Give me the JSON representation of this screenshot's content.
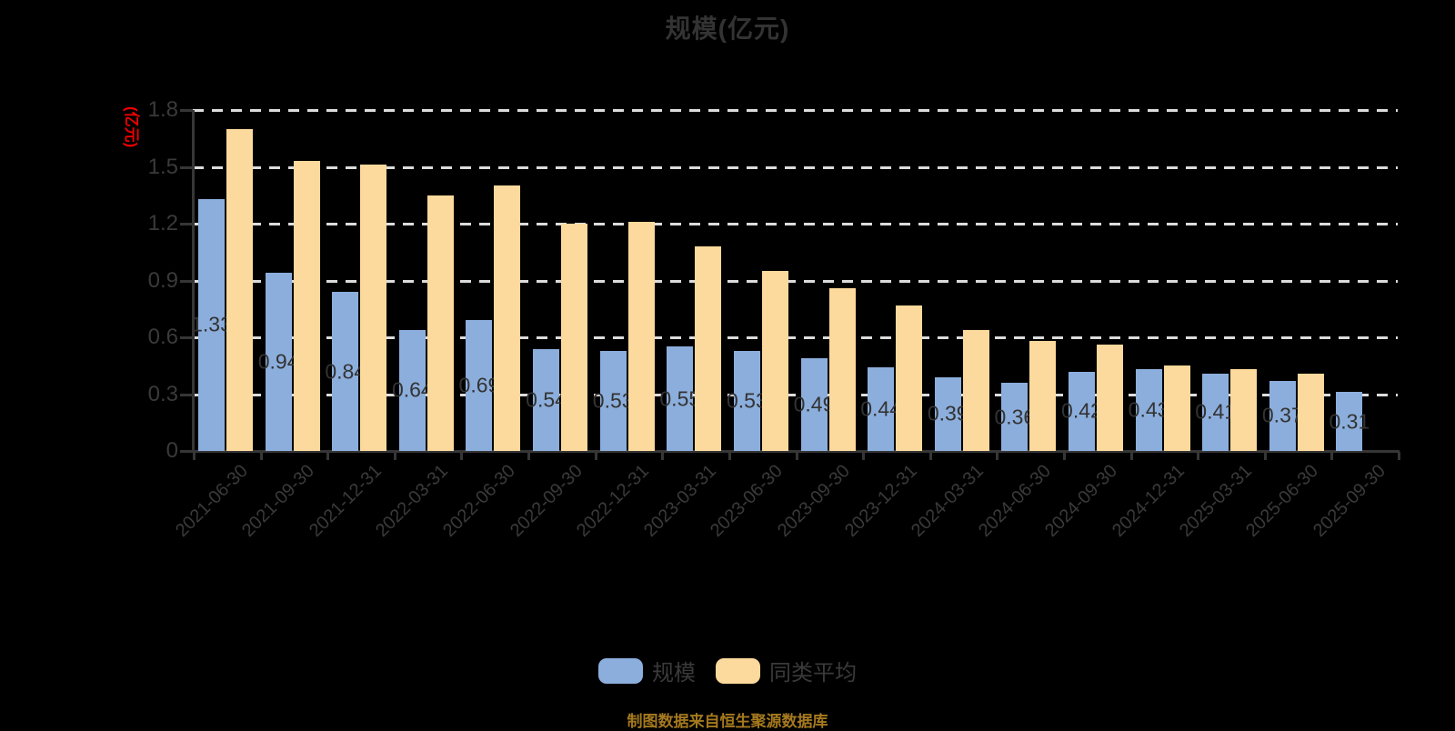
{
  "title": "规模(亿元)",
  "y_axis_name": "(亿元)",
  "source_note": "制图数据来自恒生聚源数据库",
  "colors": {
    "background": "#000000",
    "series_scale": "#8CAEDC",
    "series_average": "#FCD99C",
    "axis": "#363636",
    "text_dark": "#333333",
    "gridline": "#DCDCDC",
    "y_axis_name_red": "#EE0000",
    "source_gold": "#A5791E"
  },
  "chart_data": {
    "type": "bar",
    "title": "规模(亿元)",
    "ylabel": "(亿元)",
    "ylim": [
      0,
      1.8
    ],
    "yticks": [
      0,
      0.3,
      0.6,
      0.9,
      1.2,
      1.5,
      1.8
    ],
    "grid": "horizontal-dashed",
    "legend_position": "bottom",
    "categories": [
      "2021-06-30",
      "2021-09-30",
      "2021-12-31",
      "2022-03-31",
      "2022-06-30",
      "2022-09-30",
      "2022-12-31",
      "2023-03-31",
      "2023-06-30",
      "2023-09-30",
      "2023-12-31",
      "2024-03-31",
      "2024-06-30",
      "2024-09-30",
      "2024-12-31",
      "2025-03-31",
      "2025-06-30",
      "2025-09-30"
    ],
    "series": [
      {
        "name": "规模",
        "color": "#8CAEDC",
        "labels_shown": true,
        "values": [
          1.33,
          0.94,
          0.84,
          0.64,
          0.69,
          0.54,
          0.53,
          0.55,
          0.53,
          0.49,
          0.44,
          0.39,
          0.36,
          0.42,
          0.43,
          0.41,
          0.37,
          0.31
        ]
      },
      {
        "name": "同类平均",
        "color": "#FCD99C",
        "labels_shown": false,
        "values": [
          1.7,
          1.53,
          1.51,
          1.35,
          1.4,
          1.2,
          1.21,
          1.08,
          0.95,
          0.86,
          0.77,
          0.64,
          0.58,
          0.56,
          0.45,
          0.43,
          0.41,
          null
        ]
      }
    ]
  }
}
